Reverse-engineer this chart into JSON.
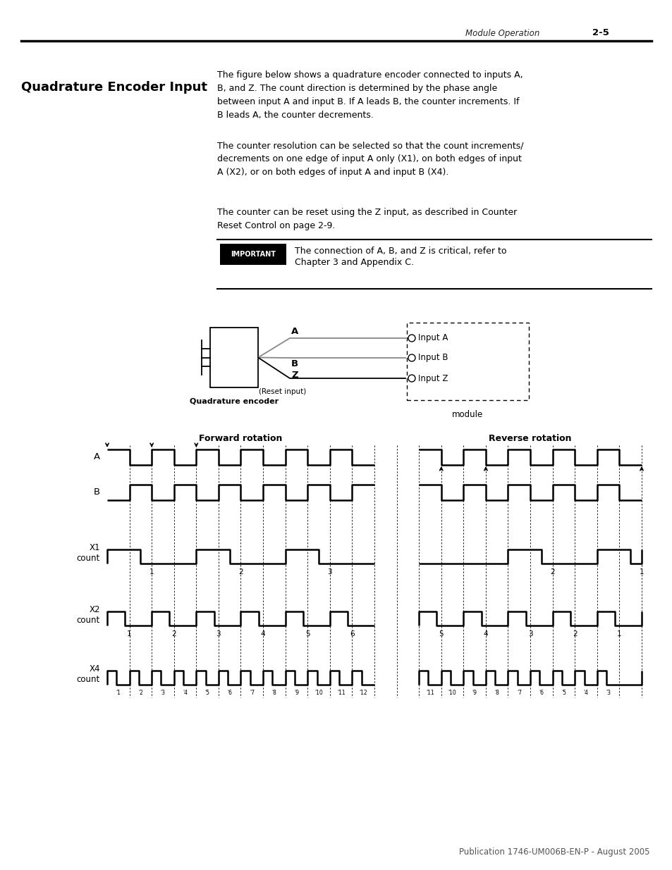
{
  "page_header_left": "Module Operation",
  "page_header_right": "2-5",
  "section_title": "Quadrature Encoder Input",
  "para1": "The figure below shows a quadrature encoder connected to inputs A,\nB, and Z. The count direction is determined by the phase angle\nbetween input A and input B. If A leads B, the counter increments. If\nB leads A, the counter decrements.",
  "para2": "The counter resolution can be selected so that the count increments/\ndecrements on one edge of input A only (X1), on both edges of input\nA (X2), or on both edges of input A and input B (X4).",
  "para3": "The counter can be reset using the Z input, as described in Counter\nReset Control on page 2-9.",
  "important_label": "IMPORTANT",
  "important_text_line1": "The connection of A, B, and Z is critical, refer to",
  "important_text_line2": "Chapter 3 and Appendix C.",
  "fwd_label": "Forward rotation",
  "rev_label": "Reverse rotation",
  "footer": "Publication 1746-UM006B-EN-P - August 2005",
  "bg_color": "#ffffff",
  "text_color": "#000000"
}
